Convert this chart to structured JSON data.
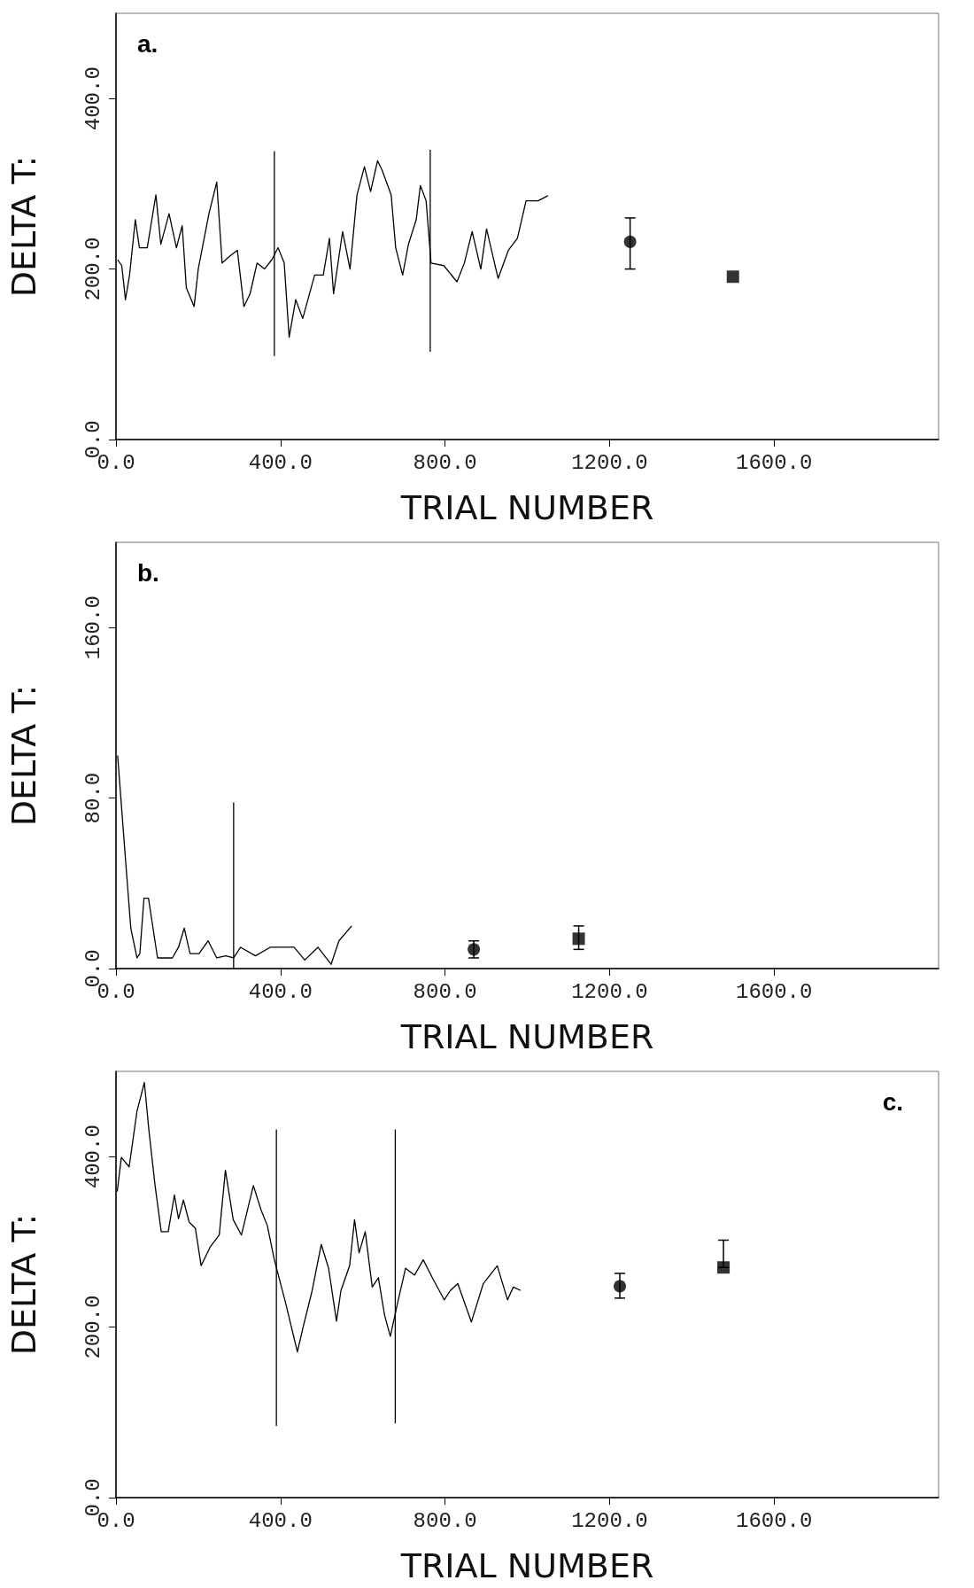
{
  "chart_data": [
    {
      "type": "line",
      "xlabel": "TRIAL NUMBER",
      "ylabel": "DELTA T:",
      "annotations": [
        "a."
      ],
      "xlim": [
        0,
        2000
      ],
      "xticks": [
        {
          "value": 0,
          "label": "0.0"
        },
        {
          "value": 400,
          "label": "400.0"
        },
        {
          "value": 800,
          "label": "800.0"
        },
        {
          "value": 1200,
          "label": "1200.0"
        },
        {
          "value": 1600,
          "label": "1600.0"
        }
      ],
      "ylim": [
        0,
        500
      ],
      "yticks": [
        {
          "value": 0,
          "label": "0.0"
        },
        {
          "value": 200,
          "label": "200.0"
        },
        {
          "value": 400,
          "label": "400.0"
        }
      ],
      "series": [
        {
          "color": "#000000",
          "x": [
            4,
            14,
            23,
            33,
            47,
            57,
            76,
            97,
            109,
            129,
            147,
            161,
            171,
            190,
            200,
            226,
            245,
            258,
            276,
            295,
            311,
            326,
            343,
            361,
            379,
            394,
            409,
            421,
            437,
            454,
            483,
            504,
            519,
            529,
            551,
            569,
            586,
            604,
            619,
            636,
            647,
            669,
            680,
            697,
            711,
            730,
            740,
            754,
            766,
            797,
            829,
            847,
            866,
            887,
            901,
            929,
            954,
            976,
            997,
            1026,
            1050
          ],
          "values": [
            211,
            204,
            164,
            193,
            258,
            225,
            225,
            287,
            229,
            265,
            225,
            251,
            178,
            156,
            200,
            265,
            302,
            207,
            215,
            222,
            156,
            171,
            207,
            200,
            211,
            225,
            207,
            120,
            164,
            142,
            193,
            193,
            236,
            171,
            244,
            200,
            287,
            320,
            291,
            327,
            316,
            287,
            225,
            193,
            229,
            258,
            298,
            280,
            207,
            204,
            185,
            207,
            244,
            200,
            247,
            189,
            222,
            236,
            280,
            280,
            286
          ]
        },
        {
          "color": "#000000",
          "x": [
            385,
            385
          ],
          "values": [
            98,
            338
          ]
        },
        {
          "color": "#000000",
          "x": [
            764,
            764
          ],
          "values": [
            103,
            340
          ]
        },
        {
          "type": "scatter",
          "marker": "circle",
          "color": "#000000",
          "x": [
            1250
          ],
          "values": [
            232
          ],
          "errors": [
            [
              200,
              260
            ]
          ]
        },
        {
          "type": "scatter",
          "marker": "square",
          "color": "#000000",
          "x": [
            1500
          ],
          "values": [
            191
          ]
        }
      ]
    },
    {
      "type": "line",
      "xlabel": "TRIAL NUMBER",
      "ylabel": "DELTA T:",
      "annotations": [
        "b."
      ],
      "xlim": [
        0,
        2000
      ],
      "xticks": [
        {
          "value": 0,
          "label": "0.0"
        },
        {
          "value": 400,
          "label": "400.0"
        },
        {
          "value": 800,
          "label": "800.0"
        },
        {
          "value": 1200,
          "label": "1200.0"
        },
        {
          "value": 1600,
          "label": "1600.0"
        }
      ],
      "ylim": [
        0,
        200
      ],
      "yticks": [
        {
          "value": 0,
          "label": "0.0"
        },
        {
          "value": 80,
          "label": "80.0"
        },
        {
          "value": 160,
          "label": "160.0"
        }
      ],
      "series": [
        {
          "color": "#000000",
          "x": [
            4,
            22,
            36,
            51,
            58,
            68,
            79,
            90,
            101,
            137,
            152,
            166,
            180,
            202,
            224,
            245,
            267,
            286,
            303,
            339,
            375,
            404,
            433,
            459,
            491,
            523,
            542,
            573
          ],
          "values": [
            100,
            54,
            19,
            5,
            7,
            33,
            33,
            19,
            5,
            5,
            10,
            19,
            7,
            7,
            13,
            5,
            6,
            5,
            10,
            6,
            10,
            10,
            10,
            4,
            10,
            2,
            13,
            20
          ]
        },
        {
          "color": "#000000",
          "x": [
            286,
            286
          ],
          "values": [
            0,
            78
          ]
        },
        {
          "type": "scatter",
          "marker": "circle",
          "color": "#000000",
          "x": [
            870
          ],
          "values": [
            9
          ],
          "errors": [
            [
              5,
              13
            ]
          ]
        },
        {
          "type": "scatter",
          "marker": "square",
          "color": "#000000",
          "x": [
            1125
          ],
          "values": [
            14
          ],
          "errors": [
            [
              9,
              20
            ]
          ]
        }
      ]
    },
    {
      "type": "line",
      "xlabel": "TRIAL NUMBER",
      "ylabel": "DELTA T:",
      "annotations": [
        "c."
      ],
      "xlim": [
        0,
        2000
      ],
      "xticks": [
        {
          "value": 0,
          "label": "0.0"
        },
        {
          "value": 400,
          "label": "400.0"
        },
        {
          "value": 800,
          "label": "800.0"
        },
        {
          "value": 1200,
          "label": "1200.0"
        },
        {
          "value": 1600,
          "label": "1600.0"
        }
      ],
      "ylim": [
        0,
        500
      ],
      "yticks": [
        {
          "value": 0,
          "label": "0.0"
        },
        {
          "value": 200,
          "label": "200.0"
        },
        {
          "value": 400,
          "label": "400.0"
        }
      ],
      "series": [
        {
          "color": "#000000",
          "x": [
            3,
            13,
            32,
            51,
            69,
            80,
            95,
            110,
            127,
            142,
            152,
            164,
            178,
            193,
            207,
            229,
            251,
            266,
            285,
            305,
            334,
            353,
            368,
            385,
            412,
            441,
            455,
            477,
            499,
            517,
            536,
            547,
            568,
            580,
            591,
            606,
            623,
            638,
            653,
            667,
            685,
            704,
            726,
            747,
            769,
            798,
            813,
            831,
            864,
            893,
            927,
            952,
            966,
            984
          ],
          "values": [
            359,
            399,
            388,
            453,
            487,
            431,
            366,
            312,
            312,
            355,
            327,
            349,
            323,
            316,
            272,
            294,
            308,
            384,
            326,
            308,
            366,
            337,
            319,
            279,
            229,
            171,
            200,
            243,
            297,
            269,
            207,
            243,
            272,
            326,
            287,
            312,
            247,
            258,
            214,
            189,
            229,
            269,
            261,
            279,
            258,
            232,
            243,
            251,
            206,
            251,
            272,
            232,
            247,
            243
          ]
        },
        {
          "color": "#000000",
          "x": [
            390,
            390
          ],
          "values": [
            84,
            432
          ]
        },
        {
          "color": "#000000",
          "x": [
            679,
            679
          ],
          "values": [
            87,
            432
          ]
        },
        {
          "type": "scatter",
          "marker": "circle",
          "color": "#000000",
          "x": [
            1225
          ],
          "values": [
            248
          ],
          "errors": [
            [
              234,
              263
            ]
          ]
        },
        {
          "type": "scatter",
          "marker": "square",
          "color": "#000000",
          "x": [
            1477
          ],
          "values": [
            270
          ],
          "errors": [
            [
              270,
              302
            ]
          ]
        }
      ]
    }
  ]
}
